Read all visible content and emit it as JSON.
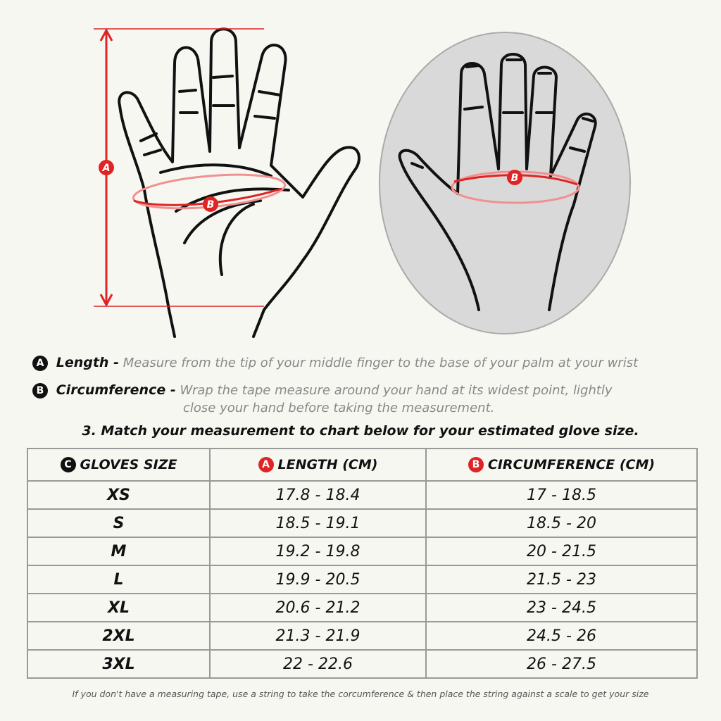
{
  "markers": {
    "a": "A",
    "b": "B",
    "c": "C"
  },
  "colors": {
    "accent": "#e02424",
    "ink": "#111111",
    "background": "#f7f7f2",
    "oval": "#d9d9d9"
  },
  "length": {
    "label": "Length -",
    "text": "Measure from the tip of your middle finger to the base of your palm at your wrist"
  },
  "circumference": {
    "label": "Circumference -",
    "text1": "Wrap the tape measure around your hand at its widest point, lightly",
    "text2": "close your hand before taking the measurement."
  },
  "instruction": "3. Match your measurement to chart below for your estimated glove size.",
  "table": {
    "headers": [
      "GLOVES SIZE",
      "LENGTH (CM)",
      "CIRCUMFERENCE (CM)"
    ],
    "rows": [
      [
        "XS",
        "17.8 - 18.4",
        "17 - 18.5"
      ],
      [
        "S",
        "18.5 - 19.1",
        "18.5 - 20"
      ],
      [
        "M",
        "19.2 - 19.8",
        "20 - 21.5"
      ],
      [
        "L",
        "19.9 - 20.5",
        "21.5 - 23"
      ],
      [
        "XL",
        "20.6 - 21.2",
        "23 - 24.5"
      ],
      [
        "2XL",
        "21.3 - 21.9",
        "24.5 - 26"
      ],
      [
        "3XL",
        "22 - 22.6",
        "26 - 27.5"
      ]
    ]
  },
  "footnote": "If you don't have a measuring tape, use a string to take the corcumference & then place the string against a scale to get your size"
}
